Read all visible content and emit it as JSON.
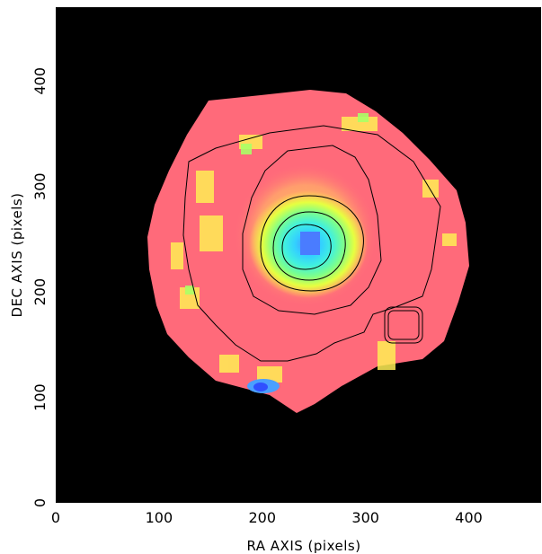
{
  "chart_data": {
    "type": "heatmap",
    "xlabel": "RA AXIS (pixels)",
    "ylabel": "DEC AXIS (pixels)",
    "xlim": [
      0,
      470
    ],
    "ylim": [
      0,
      470
    ],
    "x_ticks": [
      0,
      100,
      200,
      300,
      400
    ],
    "y_ticks": [
      0,
      100,
      200,
      300,
      400
    ],
    "background_color": "#000000",
    "colormap": [
      "#ff6a7a",
      "#ffe84a",
      "#e6ff40",
      "#7dff8a",
      "#40f0e0",
      "#33d0ff",
      "#4a8cff"
    ],
    "grid": false,
    "legend": "none",
    "core_center": [
      248,
      250
    ],
    "contour_levels": [
      {
        "level": "outer",
        "color": "#000000"
      },
      {
        "level": "mid",
        "color": "#000000"
      },
      {
        "level": "inner",
        "color": "#000000"
      },
      {
        "level": "core",
        "color": "#000000"
      },
      {
        "level": "peak",
        "color": "#000000"
      }
    ]
  }
}
